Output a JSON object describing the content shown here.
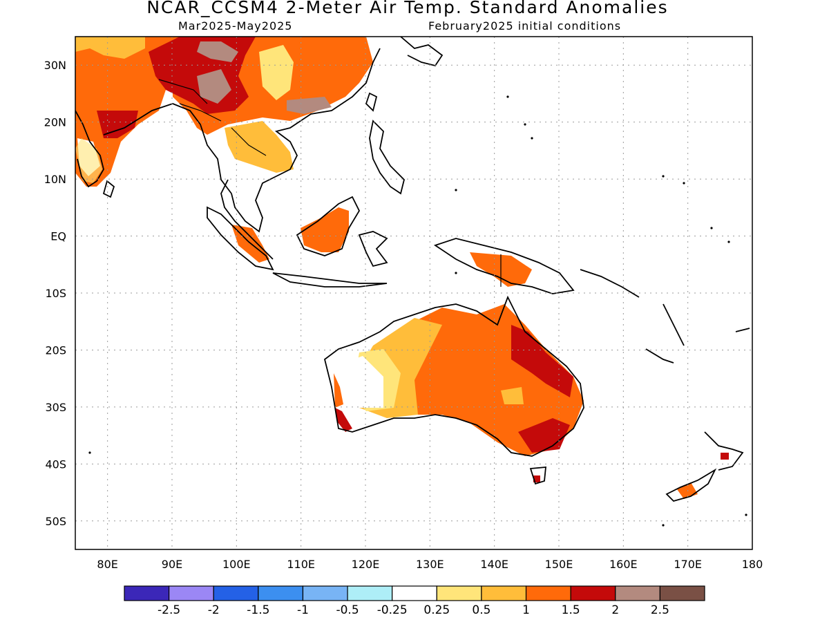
{
  "header": {
    "title": "NCAR_CCSM4 2-Meter Air Temp. Standard Anomalies",
    "period": "Mar2025-May2025",
    "init": "February2025 initial conditions"
  },
  "axes": {
    "lon_ticks": [
      "80E",
      "90E",
      "100E",
      "110E",
      "120E",
      "130E",
      "140E",
      "150E",
      "160E",
      "170E",
      "180"
    ],
    "lat_ticks": [
      "30N",
      "20N",
      "10N",
      "EQ",
      "10S",
      "20S",
      "30S",
      "40S",
      "50S"
    ]
  },
  "colorbar": {
    "colors": [
      "#3b27b8",
      "#9b87f5",
      "#2461e6",
      "#3c8ff0",
      "#78b4f5",
      "#aeeef7",
      "#ffffff",
      "#ffe57a",
      "#ffbd3a",
      "#ff6a0a",
      "#c40a0a",
      "#b38a7f",
      "#7a5045"
    ],
    "labels": [
      "-2.5",
      "-2",
      "-1.5",
      "-1",
      "-0.5",
      "-0.25",
      "0.25",
      "0.5",
      "1",
      "1.5",
      "2",
      "2.5"
    ]
  },
  "map": {
    "extent": {
      "lon": [
        75,
        180
      ],
      "lat": [
        -55,
        35
      ]
    },
    "fields": {
      "light_yellow": "#ffe57a",
      "yellow_orange": "#ffbd3a",
      "orange": "#ff6a0a",
      "dark_red": "#c40a0a",
      "brown_gray": "#b38a7f",
      "white": "#ffffff"
    }
  }
}
